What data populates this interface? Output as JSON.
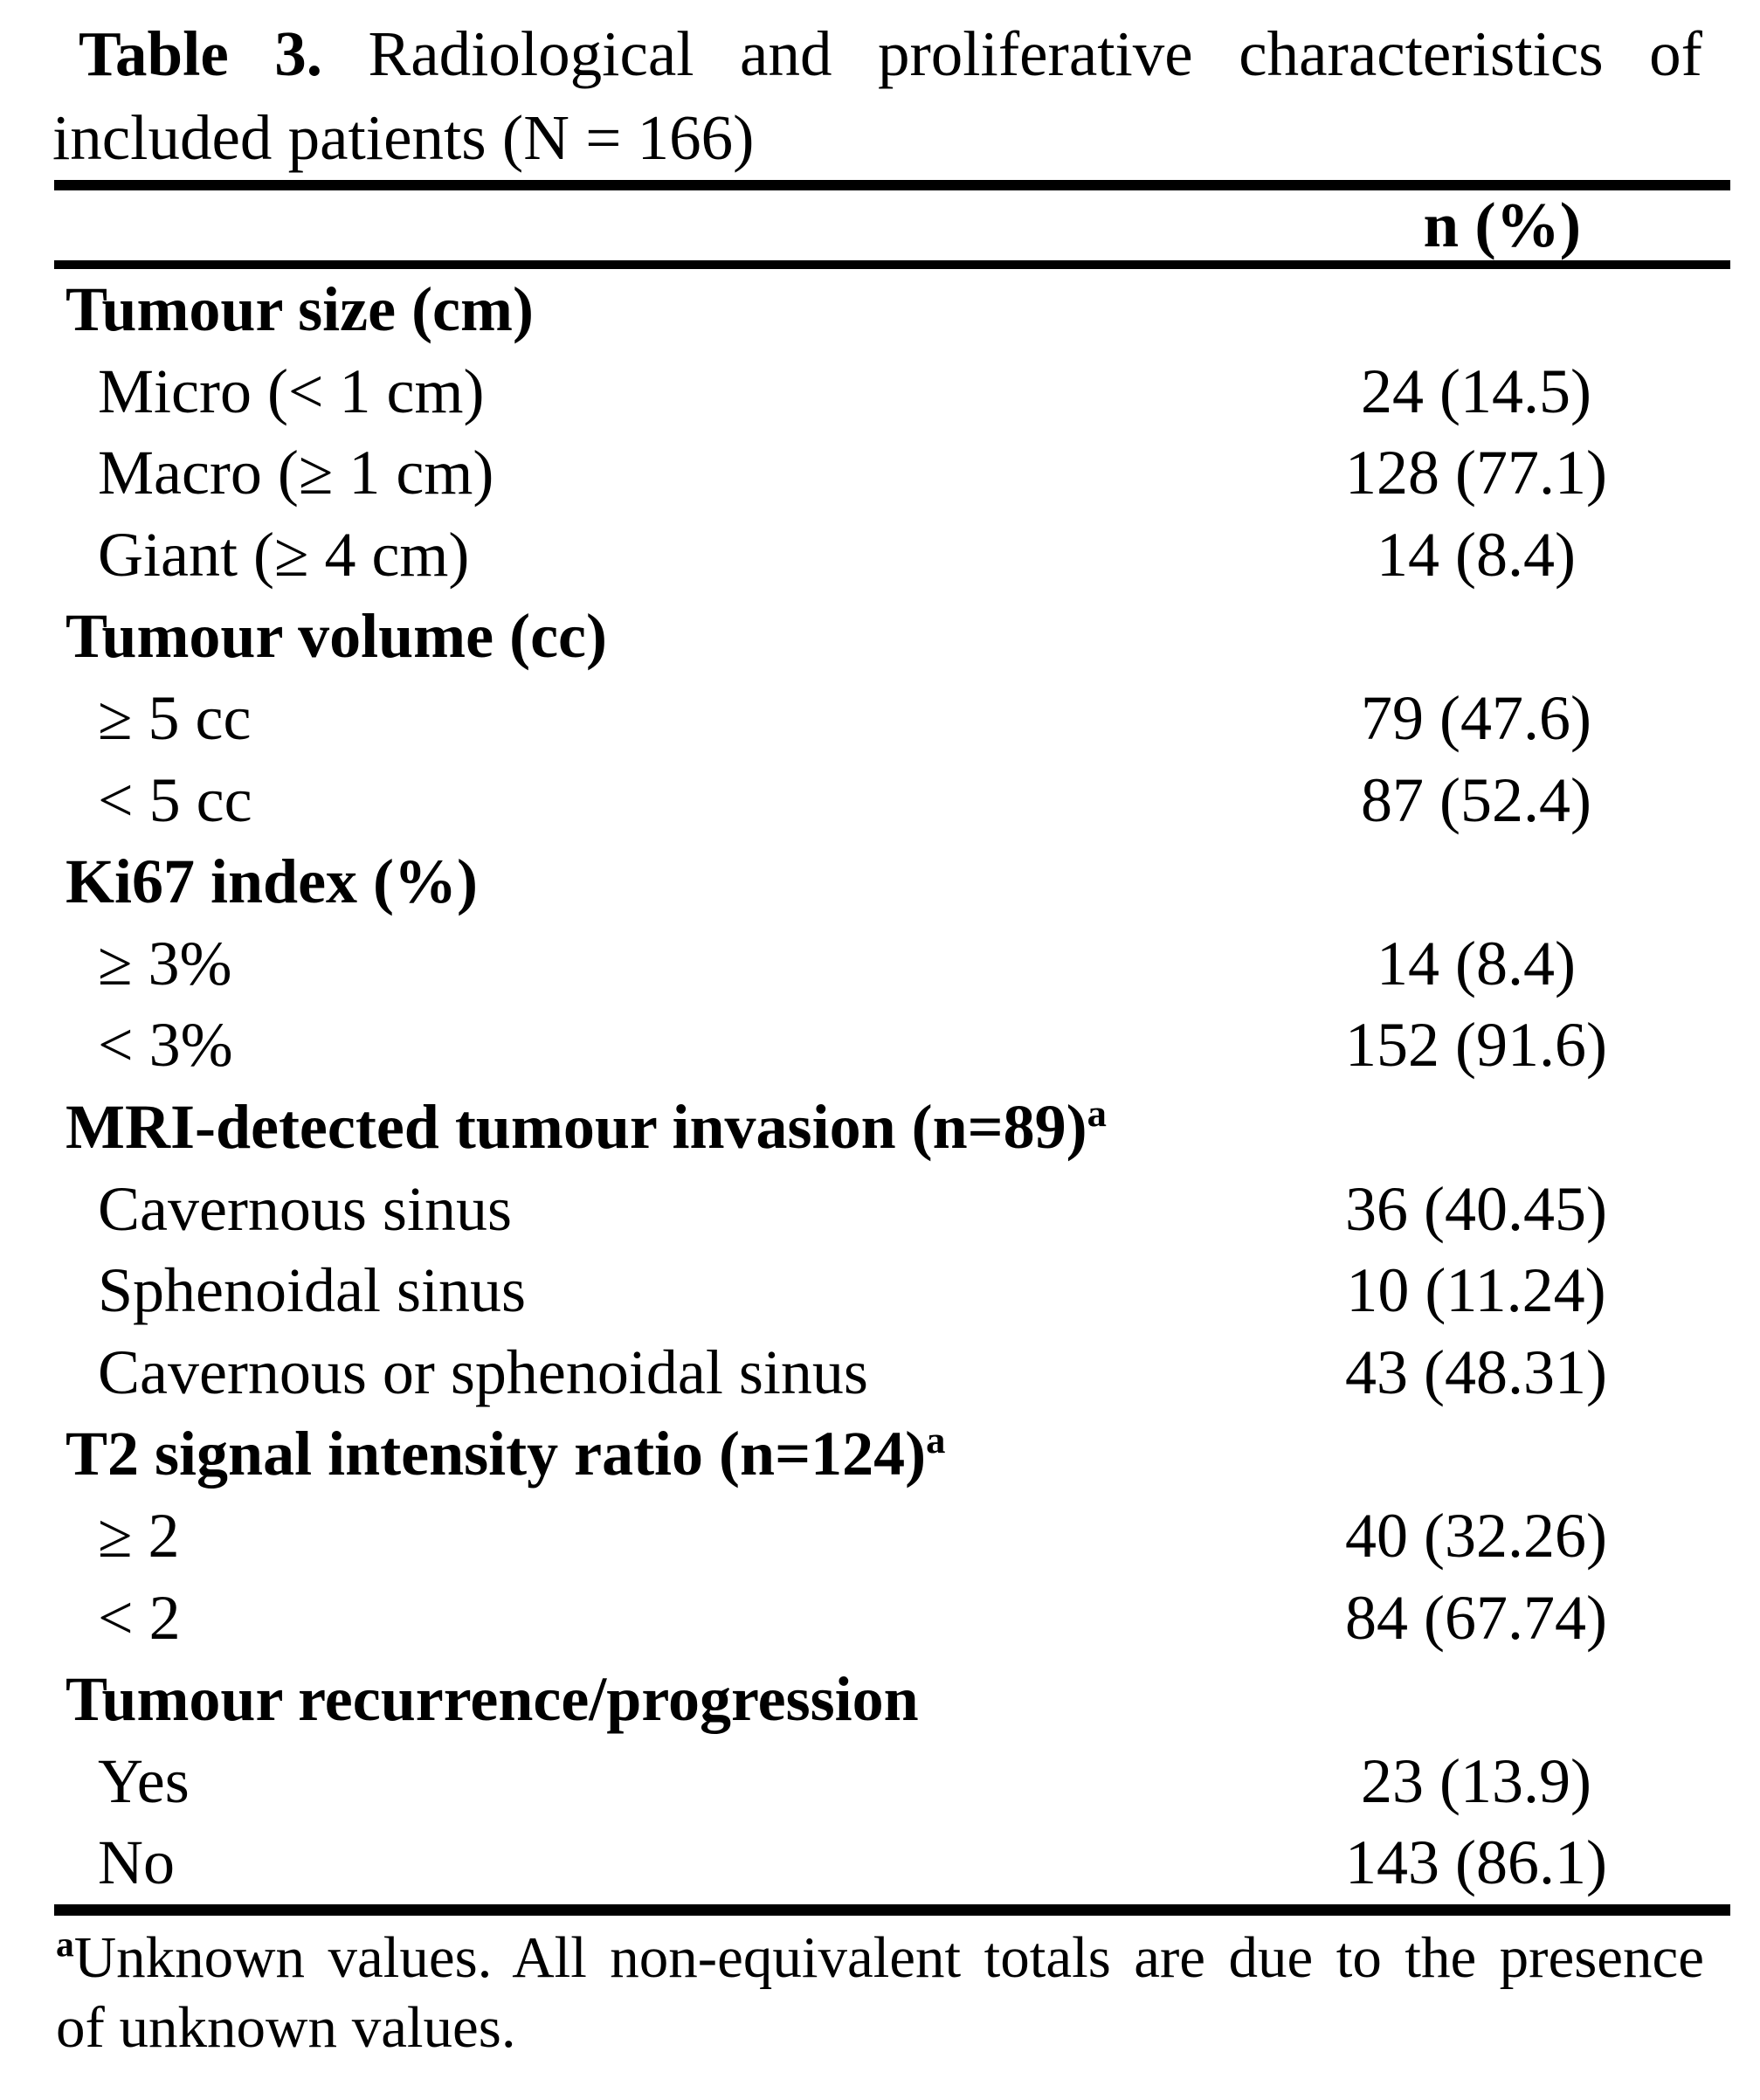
{
  "page": {
    "background": "#ffffff",
    "text_color": "#000000",
    "rule_color": "#000000"
  },
  "table": {
    "title": {
      "bold_label": "Table 3.",
      "line1_rest": "Radiological and proliferative characteristics of",
      "line2": "included patients (N = 166)"
    },
    "header": {
      "value_column": "n (%)"
    },
    "rows": [
      {
        "type": "section",
        "label": "Tumour size (cm)"
      },
      {
        "type": "item",
        "label": "Micro (< 1 cm)",
        "value": "24 (14.5)"
      },
      {
        "type": "item",
        "label": "Macro (≥ 1 cm)",
        "value": "128 (77.1)"
      },
      {
        "type": "item",
        "label": "Giant (≥ 4 cm)",
        "value": "14 (8.4)"
      },
      {
        "type": "section",
        "label": "Tumour volume (cc)"
      },
      {
        "type": "item",
        "label": "≥ 5 cc",
        "value": "79 (47.6)"
      },
      {
        "type": "item",
        "label": "< 5 cc",
        "value": "87 (52.4)"
      },
      {
        "type": "section",
        "label": "Ki67 index (%)"
      },
      {
        "type": "item",
        "label": "≥ 3%",
        "value": "14 (8.4)"
      },
      {
        "type": "item",
        "label": "< 3%",
        "value": "152 (91.6)"
      },
      {
        "type": "section",
        "label": "MRI-detected tumour invasion (n=89)",
        "sup": "a"
      },
      {
        "type": "item",
        "label": "Cavernous sinus",
        "value": "36 (40.45)"
      },
      {
        "type": "item",
        "label": "Sphenoidal sinus",
        "value": "10 (11.24)"
      },
      {
        "type": "item",
        "label": "Cavernous or sphenoidal sinus",
        "value": "43 (48.31)"
      },
      {
        "type": "section",
        "label": "T2 signal intensity ratio (n=124)",
        "sup": "a"
      },
      {
        "type": "item",
        "label": "≥ 2",
        "value": "40 (32.26)"
      },
      {
        "type": "item",
        "label": "< 2",
        "value": "84 (67.74)"
      },
      {
        "type": "section",
        "label": "Tumour recurrence/progression"
      },
      {
        "type": "item",
        "label": "Yes",
        "value": "23 (13.9)"
      },
      {
        "type": "item",
        "label": "No",
        "value": "143 (86.1)"
      }
    ],
    "footnote": {
      "marker": "a",
      "line1": "Unknown values. All non-equivalent totals are due to the presence",
      "line2": "of unknown values."
    }
  }
}
